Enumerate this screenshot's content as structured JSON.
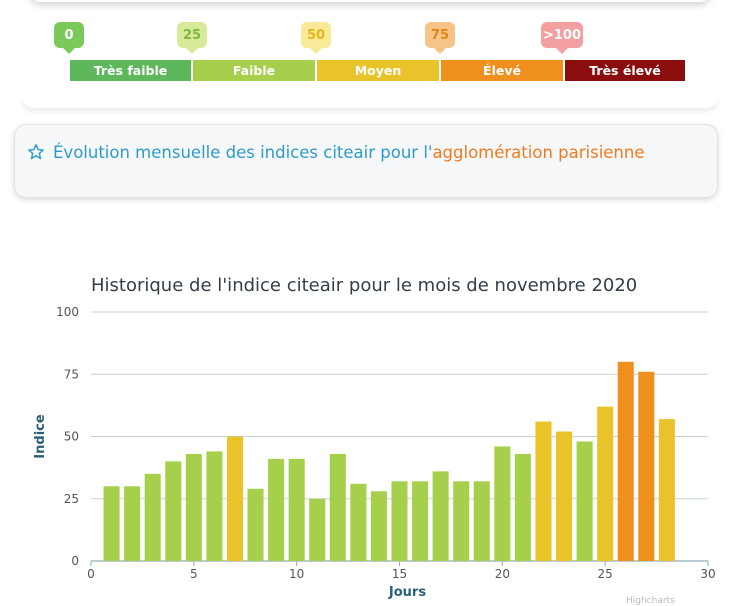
{
  "scale": {
    "ticks": [
      {
        "label": "0",
        "bg": "#7cc95b",
        "fg": "#ffffff"
      },
      {
        "label": "25",
        "bg": "#d7ea9a",
        "fg": "#7fb83a"
      },
      {
        "label": "50",
        "bg": "#f8ea97",
        "fg": "#e3b51b"
      },
      {
        "label": "75",
        "bg": "#f6c488",
        "fg": "#e08518"
      },
      {
        "label": ">100",
        "bg": "#f5a0a0",
        "fg": "#ffffff"
      }
    ],
    "levels": [
      {
        "label": "Très faible",
        "color": "#5fb75b"
      },
      {
        "label": "Faible",
        "color": "#a6cf4b"
      },
      {
        "label": "Moyen",
        "color": "#e8c32a"
      },
      {
        "label": "Élevé",
        "color": "#ef8f1d"
      },
      {
        "label": "Très élevé",
        "color": "#8b0d0d"
      }
    ]
  },
  "evolution": {
    "prefix": "Évolution mensuelle des indices citeair pour l'",
    "highlight": "agglomération parisienne",
    "icon": "star-icon"
  },
  "chart_data": {
    "type": "bar",
    "title": "Historique de l'indice citeair pour le mois de novembre 2020",
    "xlabel": "Jours",
    "ylabel": "Indice",
    "xlim": [
      0,
      30
    ],
    "ylim": [
      0,
      100
    ],
    "xticks": [
      0,
      5,
      10,
      15,
      20,
      25,
      30
    ],
    "yticks": [
      0,
      25,
      50,
      75,
      100
    ],
    "grid": true,
    "x": [
      1,
      2,
      3,
      4,
      5,
      6,
      7,
      8,
      9,
      10,
      11,
      12,
      13,
      14,
      15,
      16,
      17,
      18,
      19,
      20,
      21,
      22,
      23,
      24,
      25,
      26,
      27,
      28
    ],
    "values": [
      30,
      30,
      35,
      40,
      43,
      44,
      50,
      29,
      41,
      41,
      25,
      43,
      31,
      28,
      32,
      32,
      36,
      32,
      32,
      46,
      43,
      56,
      52,
      48,
      62,
      80,
      76,
      57
    ],
    "colors": {
      "faible": "#a6cf4b",
      "moyen": "#e8c32a",
      "eleve": "#ef8f1d"
    }
  },
  "watermark": "Highcharts"
}
